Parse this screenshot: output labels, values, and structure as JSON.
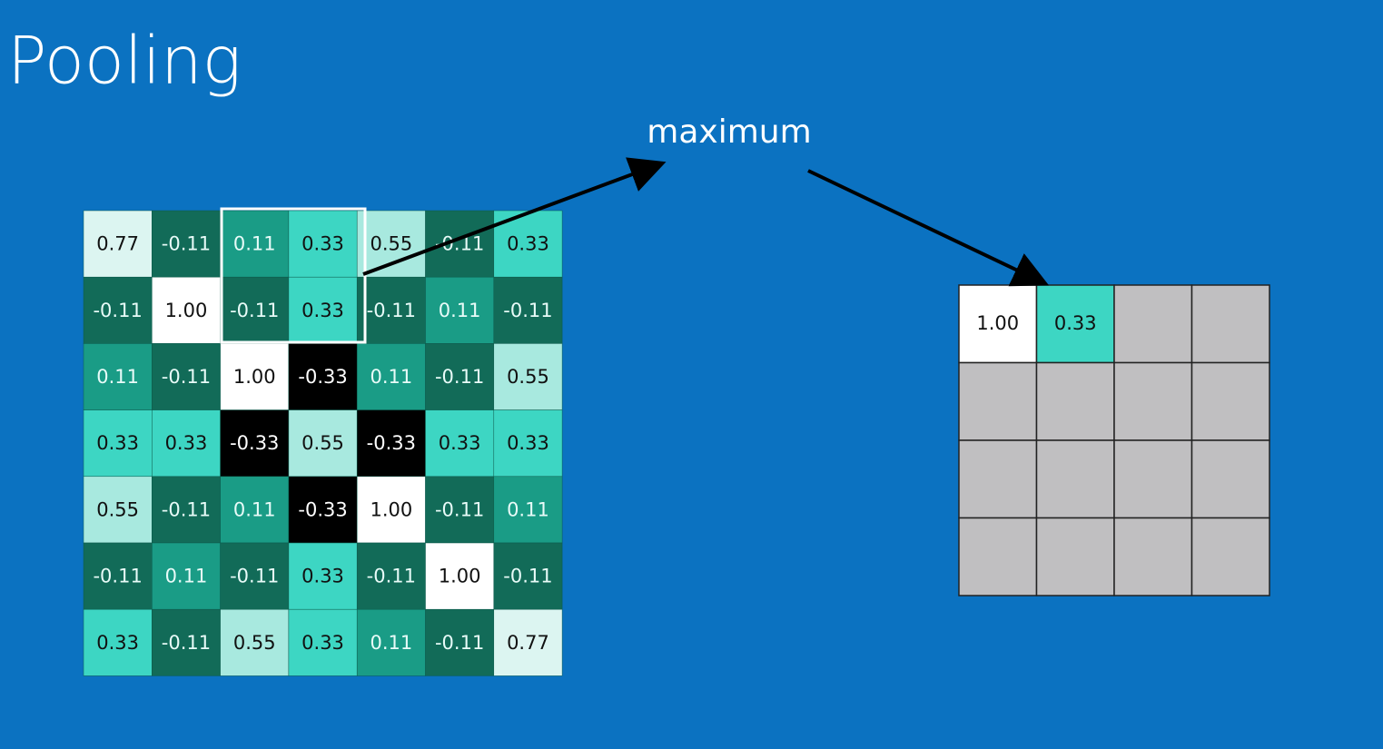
{
  "header": {
    "title": "Pooling"
  },
  "label": "maximum",
  "input": {
    "rows": [
      [
        "0.77",
        "-0.11",
        "0.11",
        "0.33",
        "0.55",
        "-0.11",
        "0.33"
      ],
      [
        "-0.11",
        "1.00",
        "-0.11",
        "0.33",
        "-0.11",
        "0.11",
        "-0.11"
      ],
      [
        "0.11",
        "-0.11",
        "1.00",
        "-0.33",
        "0.11",
        "-0.11",
        "0.55"
      ],
      [
        "0.33",
        "0.33",
        "-0.33",
        "0.55",
        "-0.33",
        "0.33",
        "0.33"
      ],
      [
        "0.55",
        "-0.11",
        "0.11",
        "-0.33",
        "1.00",
        "-0.11",
        "0.11"
      ],
      [
        "-0.11",
        "0.11",
        "-0.11",
        "0.33",
        "-0.11",
        "1.00",
        "-0.11"
      ],
      [
        "0.33",
        "-0.11",
        "0.55",
        "0.33",
        "0.11",
        "-0.11",
        "0.77"
      ]
    ]
  },
  "output": {
    "cells": [
      "1.00",
      "0.33"
    ]
  }
}
